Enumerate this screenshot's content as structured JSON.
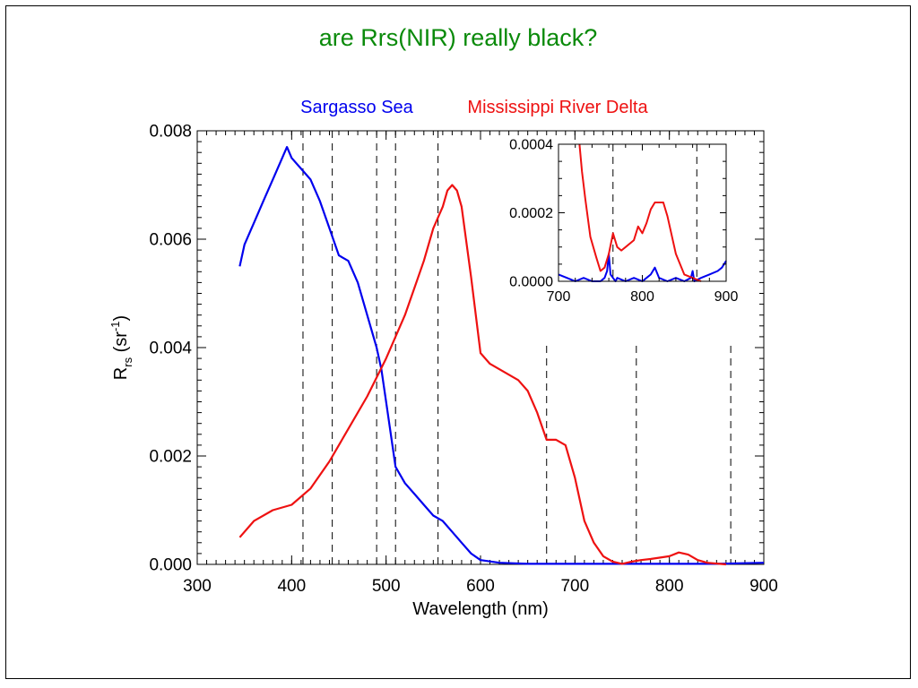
{
  "slide_title": "are Rrs(NIR) really black?",
  "colors": {
    "title": "#0a8a0a",
    "series_1": "#0000ee",
    "series_2": "#ee1111",
    "axis": "#000000"
  },
  "chart_data": [
    {
      "type": "line",
      "xlabel": "Wavelength (nm)",
      "ylabel": {
        "symbol": "R",
        "subscript": "rs",
        "unit_open": " (sr",
        "superscript": "-1",
        "unit_close": ")"
      },
      "xlim": [
        300,
        900
      ],
      "ylim": [
        0.0,
        0.008
      ],
      "xticks": [
        300,
        400,
        500,
        600,
        700,
        800,
        900
      ],
      "yticks": [
        0.0,
        0.002,
        0.004,
        0.006,
        0.008
      ],
      "ytick_labels": [
        "0.000",
        "0.002",
        "0.004",
        "0.006",
        "0.008"
      ],
      "legend": [
        "Sargasso Sea",
        "Mississippi River Delta"
      ],
      "legend_position": "top",
      "reference_lines_x": [
        412,
        443,
        490,
        510,
        555,
        670,
        765,
        865
      ],
      "series": [
        {
          "name": "Sargasso Sea",
          "x": [
            345,
            350,
            360,
            370,
            380,
            390,
            395,
            400,
            410,
            420,
            430,
            440,
            450,
            460,
            470,
            480,
            490,
            495,
            500,
            510,
            520,
            530,
            540,
            550,
            560,
            570,
            580,
            590,
            600,
            620,
            650,
            700,
            750,
            800,
            850,
            900
          ],
          "y": [
            0.0055,
            0.0059,
            0.0063,
            0.0067,
            0.0071,
            0.0075,
            0.0077,
            0.0075,
            0.0073,
            0.0071,
            0.0067,
            0.0062,
            0.0057,
            0.0056,
            0.0052,
            0.0046,
            0.004,
            0.0036,
            0.003,
            0.0018,
            0.0015,
            0.0013,
            0.0011,
            0.0009,
            0.0008,
            0.0006,
            0.0004,
            0.0002,
            8e-05,
            3e-05,
            1e-05,
            1e-05,
            1e-05,
            1e-05,
            1e-05,
            3e-05
          ]
        },
        {
          "name": "Mississippi River Delta",
          "x": [
            345,
            360,
            380,
            400,
            420,
            440,
            460,
            480,
            500,
            520,
            530,
            540,
            550,
            560,
            565,
            570,
            575,
            580,
            590,
            600,
            610,
            620,
            640,
            650,
            660,
            670,
            680,
            690,
            700,
            710,
            720,
            730,
            740,
            750,
            760,
            770,
            780,
            800,
            810,
            820,
            830,
            840,
            860
          ],
          "y": [
            0.0005,
            0.0008,
            0.001,
            0.0011,
            0.0014,
            0.0019,
            0.0025,
            0.0031,
            0.0038,
            0.0046,
            0.0051,
            0.0056,
            0.0062,
            0.0066,
            0.0069,
            0.007,
            0.0069,
            0.0066,
            0.0053,
            0.0039,
            0.0037,
            0.0036,
            0.0034,
            0.0032,
            0.0028,
            0.0023,
            0.0023,
            0.0022,
            0.0016,
            0.0008,
            0.0004,
            0.00015,
            5e-05,
            1e-05,
            5e-05,
            8e-05,
            0.0001,
            0.00015,
            0.00022,
            0.00018,
            8e-05,
            3e-05,
            0.0
          ]
        }
      ]
    },
    {
      "type": "line",
      "title": "",
      "xlim": [
        700,
        900
      ],
      "ylim": [
        0.0,
        0.0004
      ],
      "xticks": [
        700,
        800,
        900
      ],
      "yticks": [
        0.0,
        0.0002,
        0.0004
      ],
      "ytick_labels": [
        "0.0000",
        "0.0002",
        "0.0004"
      ],
      "reference_lines_x": [
        765,
        865
      ],
      "series": [
        {
          "name": "Sargasso Sea",
          "x": [
            700,
            710,
            720,
            730,
            740,
            750,
            755,
            758,
            760,
            762,
            765,
            768,
            770,
            780,
            790,
            800,
            805,
            810,
            815,
            820,
            830,
            840,
            850,
            858,
            860,
            862,
            870,
            880,
            890,
            895,
            900
          ],
          "y": [
            2e-05,
            1e-05,
            0.0,
            1e-05,
            0.0,
            0.0,
            1e-05,
            3e-05,
            8e-05,
            2e-05,
            1e-05,
            0.0,
            1e-05,
            0.0,
            1e-05,
            0.0,
            1e-05,
            2e-05,
            4e-05,
            1e-05,
            0.0,
            1e-05,
            0.0,
            1e-05,
            3e-05,
            0.0,
            1e-05,
            2e-05,
            3e-05,
            4e-05,
            6e-05
          ]
        },
        {
          "name": "Mississippi River Delta",
          "x": [
            725,
            728,
            732,
            738,
            745,
            750,
            755,
            760,
            765,
            770,
            775,
            780,
            790,
            795,
            800,
            805,
            810,
            815,
            820,
            825,
            830,
            840,
            850,
            860,
            870
          ],
          "y": [
            0.0004,
            0.00032,
            0.00024,
            0.00013,
            7e-05,
            3e-05,
            4e-05,
            8e-05,
            0.00014,
            0.0001,
            9e-05,
            0.0001,
            0.00012,
            0.00016,
            0.00014,
            0.00017,
            0.00021,
            0.00023,
            0.00023,
            0.00023,
            0.00019,
            8e-05,
            2e-05,
            1e-05,
            0.0
          ]
        }
      ]
    }
  ]
}
